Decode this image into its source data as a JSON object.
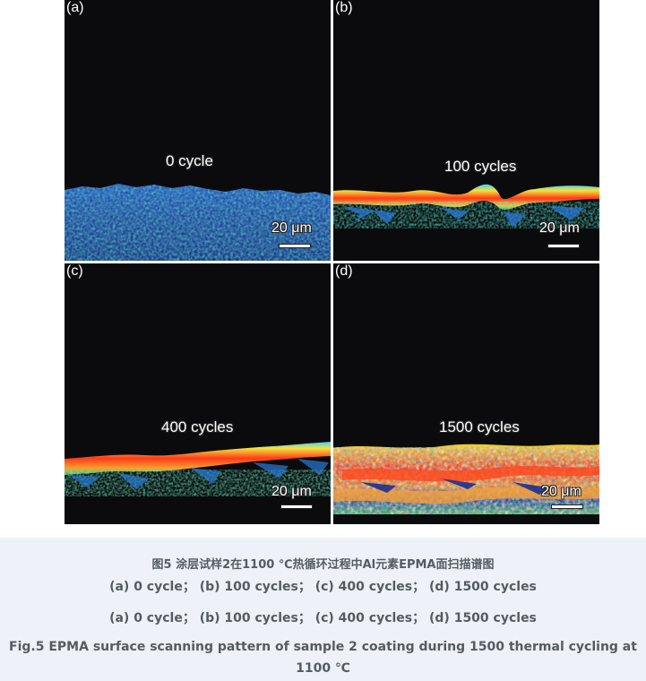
{
  "panels": [
    {
      "label": "(a)",
      "text": "0 cycle",
      "scale": "20 μm"
    },
    {
      "label": "(b)",
      "text": "100 cycles",
      "scale": "20 μm"
    },
    {
      "label": "(c)",
      "text": "400 cycles",
      "scale": "20 μm"
    },
    {
      "label": "(d)",
      "text": "1500 cycles",
      "scale": "20 μm"
    }
  ],
  "caption": {
    "cn_title": "图5 涂层试样2在1100 ℃热循环过程中Al元素EPMA面扫描谱图",
    "cn_sub": "(a)  0 cycle；  (b)  100 cycles；  (c)  400 cycles；  (d)  1500 cycles",
    "en_sub": "(a)  0 cycle；  (b)  100 cycles；  (c)  400 cycles；  (d)  1500 cycles",
    "en_title_line1": "Fig.5 EPMA surface scanning pattern of sample 2 coating during 1500 thermal cycling at",
    "en_title_line2": "1100 ℃"
  },
  "colors": {
    "background": "#0b0b0d",
    "caption_bg": "#eef2f8",
    "caption_text": "#555b63",
    "map_low": "#1a2a9a",
    "map_mid": "#2fa36b",
    "map_high": "#ff3a1a"
  }
}
